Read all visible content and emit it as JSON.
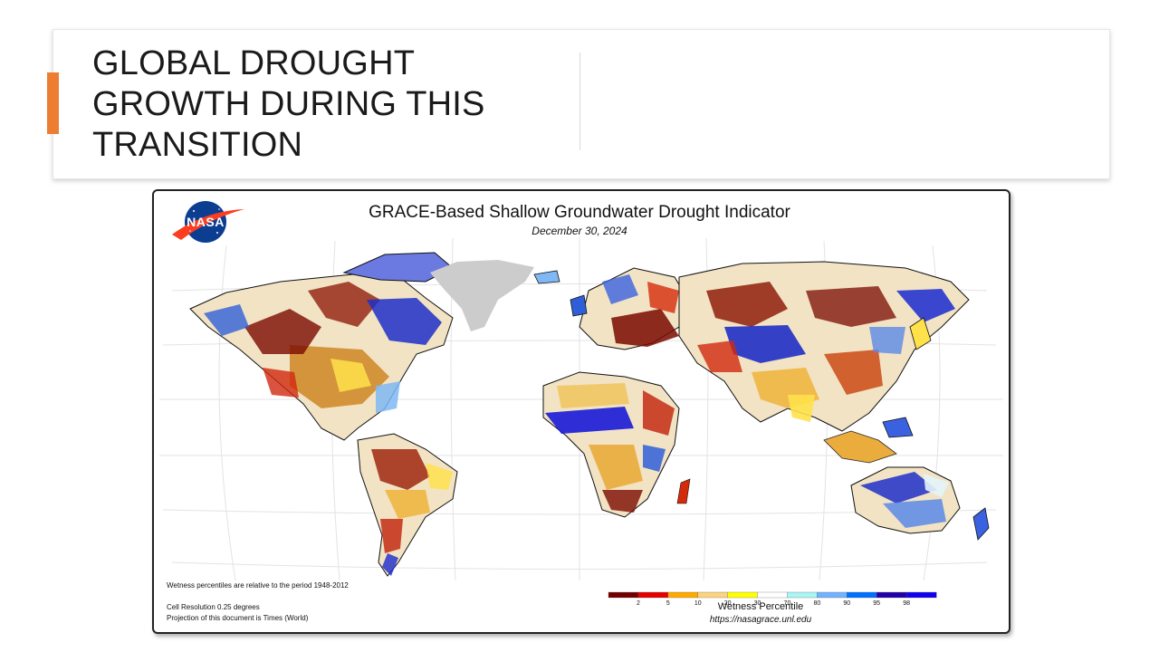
{
  "slide": {
    "title": "GLOBAL DROUGHT GROWTH DURING THIS TRANSITION",
    "accent_color": "#ed7d31"
  },
  "map": {
    "logo": {
      "text": "NASA",
      "icon": "nasa-meatball-logo-icon",
      "color": "#0b3d91"
    },
    "title": "GRACE-Based Shallow Groundwater Drought Indicator",
    "date": "December 30, 2024",
    "notes": [
      "Wetness percentiles are relative to the period 1948-2012",
      "Cell Resolution 0.25 degrees",
      "Projection of this document is Times (World)"
    ],
    "legend": {
      "title": "Wetness Percentile",
      "ticks": [
        "2",
        "5",
        "10",
        "20",
        "30",
        "70",
        "80",
        "90",
        "95",
        "98"
      ],
      "colors": [
        "#730000",
        "#e60000",
        "#ffaa00",
        "#fcd37f",
        "#ffff00",
        "#ffffff",
        "#aaf5f5",
        "#73b2ff",
        "#0070ff",
        "#2200aa",
        "#1100ee"
      ]
    },
    "url": "https://nasagrace.unl.edu",
    "greenland_color": "#cccccc"
  }
}
